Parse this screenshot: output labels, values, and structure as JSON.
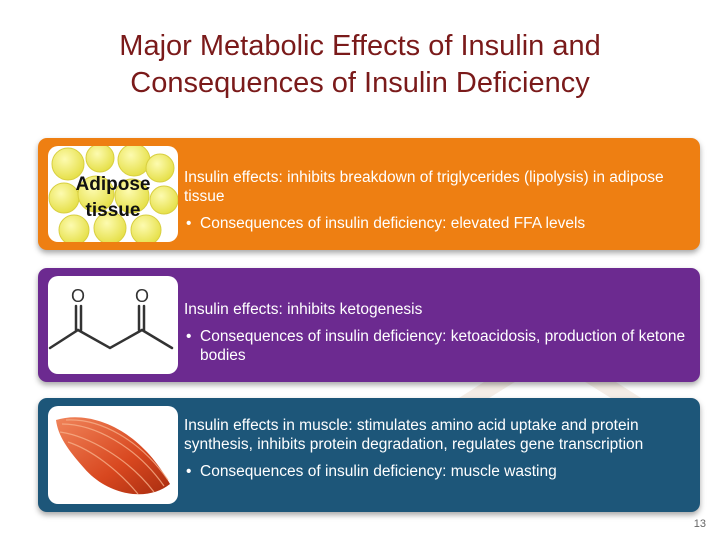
{
  "title_line1": "Major Metabolic Effects of Insulin and",
  "title_line2": "Consequences of Insulin Deficiency",
  "bands": [
    {
      "image_label_line1": "Adipose",
      "image_label_line2": "tissue",
      "effect": "Insulin effects: inhibits breakdown of triglycerides (lipolysis) in adipose tissue",
      "bullet": "Consequences of  insulin deficiency: elevated FFA levels",
      "color": "#ee7f12"
    },
    {
      "effect": "Insulin effects: inhibits ketogenesis",
      "bullet": "Consequences of  insulin deficiency: ketoacidosis, production of ketone bodies",
      "color": "#6c2a90"
    },
    {
      "effect": "Insulin effects in muscle: stimulates amino acid uptake and protein synthesis, inhibits protein degradation, regulates gene transcription",
      "bullet": "Consequences of  insulin deficiency: muscle wasting",
      "color": "#1d5679"
    }
  ],
  "bullet_char": "•",
  "icons": [
    "adipose-tissue-icon",
    "ketone-structure-icon",
    "muscle-icon"
  ],
  "page_number": "13"
}
